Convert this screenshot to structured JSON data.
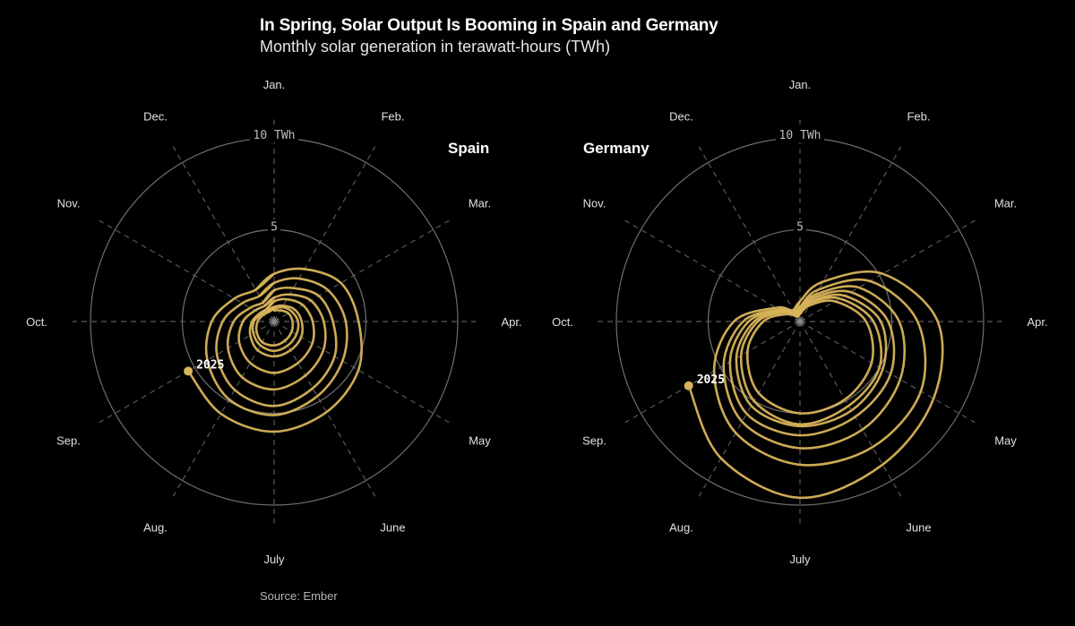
{
  "header": {
    "title": "In Spring, Solar Output Is Booming in Spain and Germany",
    "subtitle": "Monthly solar generation in terawatt-hours (TWh)"
  },
  "source": "Source: Ember",
  "colors": {
    "background": "#000000",
    "line": "#d8b45a",
    "grid_ring": "#6e6e6e",
    "grid_spoke": "#5a5a5a"
  },
  "chart_data": [
    {
      "type": "line",
      "projection": "polar",
      "title": "Spain",
      "unit": "TWh",
      "angular_axis": [
        "Jan.",
        "Feb.",
        "Mar.",
        "Apr.",
        "May",
        "June",
        "July",
        "Aug.",
        "Sep.",
        "Oct.",
        "Nov.",
        "Dec."
      ],
      "radial_ticks": [
        {
          "value": 5,
          "label": "5"
        },
        {
          "value": 10,
          "label": "10 TWh"
        }
      ],
      "rlim": [
        0,
        10
      ],
      "end_label": "2025",
      "series": [
        {
          "values": [
            0.6,
            0.7,
            0.9,
            1.0,
            1.1,
            1.2,
            1.3,
            1.3,
            1.1,
            0.9,
            0.7,
            0.6
          ]
        },
        {
          "values": [
            0.7,
            0.9,
            1.1,
            1.3,
            1.4,
            1.5,
            1.6,
            1.5,
            1.3,
            1.1,
            0.8,
            0.7
          ]
        },
        {
          "values": [
            0.8,
            1.0,
            1.3,
            1.5,
            1.7,
            1.8,
            1.9,
            1.8,
            1.5,
            1.2,
            0.9,
            0.8
          ]
        },
        {
          "values": [
            1.1,
            1.4,
            1.8,
            2.1,
            2.4,
            2.6,
            2.8,
            2.6,
            2.2,
            1.7,
            1.2,
            1.0
          ]
        },
        {
          "values": [
            1.3,
            1.7,
            2.3,
            2.7,
            3.1,
            3.4,
            3.7,
            3.5,
            2.9,
            2.2,
            1.5,
            1.2
          ]
        },
        {
          "values": [
            1.7,
            2.1,
            2.8,
            3.2,
            3.8,
            4.2,
            4.6,
            4.3,
            3.6,
            2.8,
            2.0,
            1.6
          ]
        },
        {
          "values": [
            2.1,
            2.7,
            3.4,
            3.9,
            4.3,
            4.7,
            5.1,
            4.9,
            4.2,
            3.4,
            2.5,
            2.0
          ]
        },
        {
          "values": [
            2.6,
            3.3,
            4.2,
            4.6,
            5.3,
            5.7,
            6.0,
            5.8,
            5.4
          ]
        }
      ]
    },
    {
      "type": "line",
      "projection": "polar",
      "title": "Germany",
      "unit": "TWh",
      "angular_axis": [
        "Jan.",
        "Feb.",
        "Mar.",
        "Apr.",
        "May",
        "June",
        "July",
        "Aug.",
        "Sep.",
        "Oct.",
        "Nov.",
        "Dec."
      ],
      "radial_ticks": [
        {
          "value": 5,
          "label": "5"
        },
        {
          "value": 10,
          "label": "10 TWh"
        }
      ],
      "rlim": [
        0,
        10
      ],
      "end_label": "2025",
      "series": [
        {
          "values": [
            0.4,
            1.0,
            2.2,
            3.6,
            4.5,
            4.9,
            5.0,
            4.5,
            3.3,
            2.0,
            0.8,
            0.3
          ]
        },
        {
          "values": [
            0.5,
            1.2,
            2.5,
            4.0,
            5.0,
            5.3,
            5.6,
            5.0,
            3.7,
            2.3,
            1.0,
            0.4
          ]
        },
        {
          "values": [
            0.5,
            1.3,
            2.8,
            4.4,
            5.2,
            5.6,
            5.7,
            5.3,
            4.0,
            2.5,
            1.1,
            0.4
          ]
        },
        {
          "values": [
            0.6,
            1.5,
            3.2,
            4.8,
            5.7,
            6.0,
            6.2,
            5.8,
            4.4,
            2.8,
            1.2,
            0.5
          ]
        },
        {
          "values": [
            0.7,
            1.7,
            3.7,
            5.4,
            6.3,
            6.8,
            6.9,
            6.3,
            4.8,
            3.1,
            1.3,
            0.6
          ]
        },
        {
          "values": [
            0.8,
            2.0,
            4.4,
            6.4,
            7.6,
            7.9,
            7.8,
            7.0,
            5.4,
            3.6,
            1.5,
            0.7
          ]
        },
        {
          "values": [
            1.1,
            2.5,
            5.2,
            7.5,
            8.4,
            9.0,
            9.6,
            8.6,
            7.0
          ]
        }
      ]
    }
  ]
}
